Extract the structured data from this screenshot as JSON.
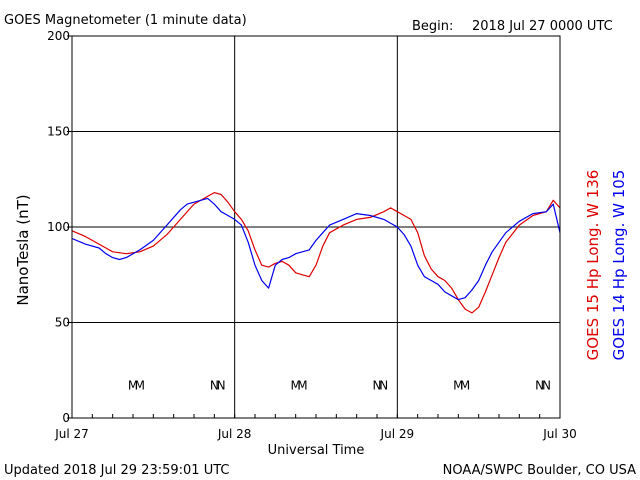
{
  "header": {
    "title": "GOES Magnetometer (1 minute data)",
    "begin_label": "Begin:",
    "begin_value": "2018 Jul 27 0000 UTC"
  },
  "footer": {
    "updated": "Updated 2018 Jul 29 23:59:01 UTC",
    "source": "NOAA/SWPC Boulder, CO USA"
  },
  "colors": {
    "goes15": "#dd0000",
    "goes14": "#0000ee",
    "axis": "#000000"
  },
  "chart_data": {
    "type": "line",
    "ylabel": "NanoTesla (nT)",
    "xlabel": "Universal Time",
    "ylim": [
      0,
      200
    ],
    "xlim_hours": [
      0,
      72
    ],
    "yticks": [
      0,
      50,
      100,
      150,
      200
    ],
    "xticks": [
      {
        "h": 0,
        "label": "Jul 27"
      },
      {
        "h": 24,
        "label": "Jul 28"
      },
      {
        "h": 48,
        "label": "Jul 29"
      },
      {
        "h": 72,
        "label": "Jul 30"
      }
    ],
    "grid": true,
    "series": [
      {
        "name": "GOES 15 Hp  Long. W 136",
        "color": "#dd0000",
        "points": [
          [
            0,
            98
          ],
          [
            2,
            95
          ],
          [
            3,
            93
          ],
          [
            5,
            89
          ],
          [
            6,
            87
          ],
          [
            8,
            86
          ],
          [
            10,
            87
          ],
          [
            12,
            90
          ],
          [
            14,
            96
          ],
          [
            16,
            104
          ],
          [
            18,
            112
          ],
          [
            20,
            116
          ],
          [
            21,
            118
          ],
          [
            22,
            117
          ],
          [
            23,
            113
          ],
          [
            24,
            108
          ],
          [
            25,
            104
          ],
          [
            26,
            98
          ],
          [
            27,
            88
          ],
          [
            28,
            80
          ],
          [
            29,
            79
          ],
          [
            30,
            81
          ],
          [
            31,
            82
          ],
          [
            32,
            80
          ],
          [
            33,
            76
          ],
          [
            34,
            75
          ],
          [
            35,
            74
          ],
          [
            36,
            80
          ],
          [
            37,
            90
          ],
          [
            38,
            97
          ],
          [
            40,
            101
          ],
          [
            42,
            104
          ],
          [
            44,
            105
          ],
          [
            46,
            108
          ],
          [
            47,
            110
          ],
          [
            48,
            108
          ],
          [
            49,
            106
          ],
          [
            50,
            104
          ],
          [
            51,
            97
          ],
          [
            52,
            85
          ],
          [
            53,
            78
          ],
          [
            54,
            74
          ],
          [
            55,
            72
          ],
          [
            56,
            68
          ],
          [
            57,
            62
          ],
          [
            58,
            57
          ],
          [
            59,
            55
          ],
          [
            60,
            58
          ],
          [
            61,
            66
          ],
          [
            62,
            75
          ],
          [
            63,
            84
          ],
          [
            64,
            92
          ],
          [
            66,
            101
          ],
          [
            68,
            106
          ],
          [
            70,
            108
          ],
          [
            71,
            114
          ],
          [
            72,
            110
          ]
        ]
      },
      {
        "name": "GOES 14 Hp  Long. W 105",
        "color": "#0000ee",
        "points": [
          [
            0,
            94
          ],
          [
            2,
            91
          ],
          [
            4,
            89
          ],
          [
            5,
            86
          ],
          [
            6,
            84
          ],
          [
            7,
            83
          ],
          [
            8,
            84
          ],
          [
            10,
            88
          ],
          [
            12,
            93
          ],
          [
            14,
            101
          ],
          [
            16,
            109
          ],
          [
            17,
            112
          ],
          [
            18,
            113
          ],
          [
            20,
            115
          ],
          [
            21,
            112
          ],
          [
            22,
            108
          ],
          [
            23,
            106
          ],
          [
            24,
            104
          ],
          [
            25,
            101
          ],
          [
            26,
            92
          ],
          [
            27,
            80
          ],
          [
            28,
            72
          ],
          [
            29,
            68
          ],
          [
            30,
            80
          ],
          [
            31,
            83
          ],
          [
            32,
            84
          ],
          [
            33,
            86
          ],
          [
            34,
            87
          ],
          [
            35,
            88
          ],
          [
            36,
            93
          ],
          [
            37,
            97
          ],
          [
            38,
            101
          ],
          [
            40,
            104
          ],
          [
            42,
            107
          ],
          [
            44,
            106
          ],
          [
            46,
            104
          ],
          [
            48,
            100
          ],
          [
            49,
            96
          ],
          [
            50,
            90
          ],
          [
            51,
            80
          ],
          [
            52,
            74
          ],
          [
            53,
            72
          ],
          [
            54,
            70
          ],
          [
            55,
            66
          ],
          [
            56,
            64
          ],
          [
            57,
            62
          ],
          [
            58,
            63
          ],
          [
            59,
            67
          ],
          [
            60,
            72
          ],
          [
            61,
            80
          ],
          [
            62,
            87
          ],
          [
            64,
            97
          ],
          [
            66,
            103
          ],
          [
            68,
            107
          ],
          [
            70,
            108
          ],
          [
            71,
            112
          ],
          [
            72,
            97
          ]
        ]
      }
    ],
    "markers": [
      {
        "h": 9,
        "text": "M",
        "series": 1
      },
      {
        "h": 10,
        "text": "M",
        "series": 0
      },
      {
        "h": 21,
        "text": "N",
        "series": 1
      },
      {
        "h": 22,
        "text": "N",
        "series": 0
      },
      {
        "h": 33,
        "text": "M",
        "series": 1
      },
      {
        "h": 34,
        "text": "M",
        "series": 0
      },
      {
        "h": 45,
        "text": "N",
        "series": 1
      },
      {
        "h": 46,
        "text": "N",
        "series": 0
      },
      {
        "h": 57,
        "text": "M",
        "series": 1
      },
      {
        "h": 58,
        "text": "M",
        "series": 0
      },
      {
        "h": 69,
        "text": "N",
        "series": 1
      },
      {
        "h": 70,
        "text": "N",
        "series": 0
      }
    ]
  }
}
